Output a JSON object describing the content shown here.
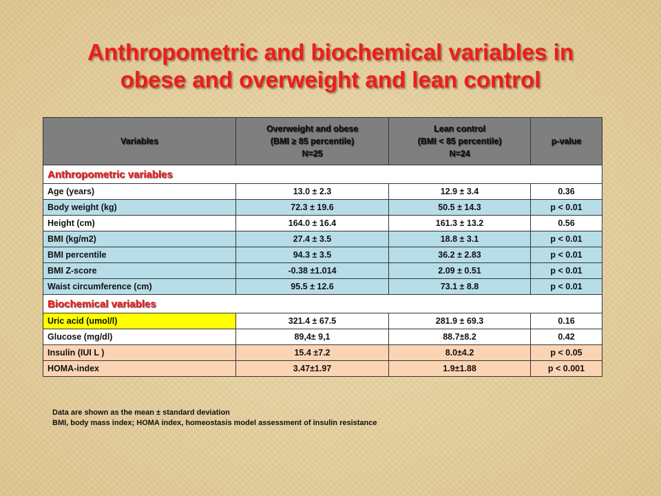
{
  "title": {
    "line1": "Anthropometric and biochemical variables in",
    "line2": "obese and overweight and lean control"
  },
  "table": {
    "headers": {
      "variables": "Variables",
      "overweight": [
        "Overweight and obese",
        "(BMI ≥ 85 percentile)",
        "N=25"
      ],
      "lean": [
        "Lean control",
        "(BMI < 85 percentile)",
        "N=24"
      ],
      "pvalue": "p-value"
    },
    "sections": [
      {
        "title": "Anthropometric variables",
        "rows": [
          {
            "variable": "Age (years)",
            "overweight": "13.0 ± 2.3",
            "lean": "12.9 ± 3.4",
            "p": "0.36",
            "color": "white"
          },
          {
            "variable": "Body weight (kg)",
            "overweight": "72.3 ± 19.6",
            "lean": "50.5 ± 14.3",
            "p": "p < 0.01",
            "color": "blue"
          },
          {
            "variable": "Height (cm)",
            "overweight": "164.0 ± 16.4",
            "lean": "161.3 ± 13.2",
            "p": "0.56",
            "color": "white"
          },
          {
            "variable": "BMI (kg/m2)",
            "overweight": "27.4 ± 3.5",
            "lean": "18.8 ± 3.1",
            "p": "p < 0.01",
            "color": "blue"
          },
          {
            "variable": "BMI percentile",
            "overweight": "94.3 ± 3.5",
            "lean": "36.2 ± 2.83",
            "p": "p < 0.01",
            "color": "blue"
          },
          {
            "variable": "BMI Z-score",
            "overweight": "-0.38 ±1.014",
            "lean": "2.09 ± 0.51",
            "p": "p < 0.01",
            "color": "blue"
          },
          {
            "variable": "Waist circumference (cm)",
            "overweight": "95.5 ± 12.6",
            "lean": "73.1 ± 8.8",
            "p": "p < 0.01",
            "color": "blue"
          }
        ]
      },
      {
        "title": "Biochemical variables",
        "rows": [
          {
            "variable": "Uric acid (umol/l)",
            "overweight": "321.4 ± 67.5",
            "lean": "281.9 ± 69.3",
            "p": "0.16",
            "color": "white",
            "highlight_label": true
          },
          {
            "variable": "Glucose (mg/dl)",
            "overweight": "89,4± 9,1",
            "lean": "88.7±8.2",
            "p": "0.42",
            "color": "white"
          },
          {
            "variable": "Insulin (IUI L )",
            "overweight": "15.4 ±7.2",
            "lean": "8.0±4.2",
            "p": "p < 0.05",
            "color": "peach"
          },
          {
            "variable": "HOMA-index",
            "overweight": "3.47±1.97",
            "lean": "1.9±1.88",
            "p": "p < 0.001",
            "color": "peach"
          }
        ]
      }
    ]
  },
  "footnote": {
    "line1": "Data are shown as the mean ± standard deviation",
    "line2": "BMI, body mass index; HOMA index, homeostasis model assessment of insulin resistance"
  },
  "colors": {
    "title": "#ee1c1c",
    "header_bg": "#7f7f7f",
    "row_blue": "#b7dde8",
    "row_peach": "#fbd4b4",
    "highlight": "#ffff00"
  }
}
